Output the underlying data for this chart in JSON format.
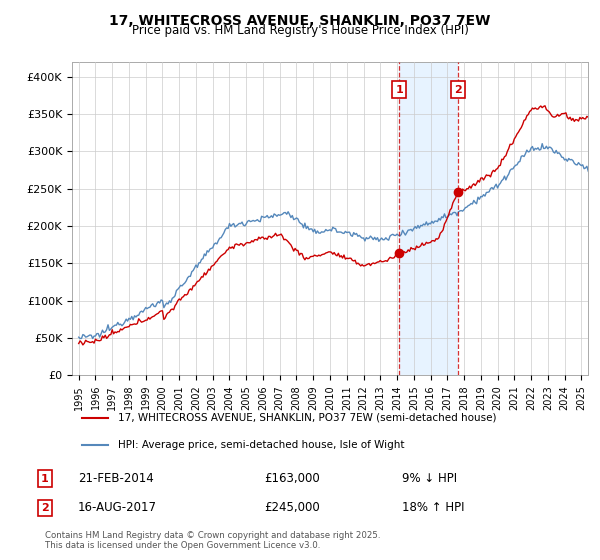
{
  "title": "17, WHITECROSS AVENUE, SHANKLIN, PO37 7EW",
  "subtitle": "Price paid vs. HM Land Registry's House Price Index (HPI)",
  "legend_label_red": "17, WHITECROSS AVENUE, SHANKLIN, PO37 7EW (semi-detached house)",
  "legend_label_blue": "HPI: Average price, semi-detached house, Isle of Wight",
  "annotation1_label": "1",
  "annotation1_date": "21-FEB-2014",
  "annotation1_price": "£163,000",
  "annotation1_pct": "9% ↓ HPI",
  "annotation2_label": "2",
  "annotation2_date": "16-AUG-2017",
  "annotation2_price": "£245,000",
  "annotation2_pct": "18% ↑ HPI",
  "footer": "Contains HM Land Registry data © Crown copyright and database right 2025.\nThis data is licensed under the Open Government Licence v3.0.",
  "red_color": "#cc0000",
  "blue_color": "#5588bb",
  "shade_color": "#ddeeff",
  "background_color": "#ffffff",
  "grid_color": "#cccccc",
  "ylim": [
    0,
    420000
  ],
  "yticks": [
    0,
    50000,
    100000,
    150000,
    200000,
    250000,
    300000,
    350000,
    400000
  ],
  "ytick_labels": [
    "£0",
    "£50K",
    "£100K",
    "£150K",
    "£200K",
    "£250K",
    "£300K",
    "£350K",
    "£400K"
  ],
  "ann1_x_year": 2014.13,
  "ann1_y": 163000,
  "ann2_x_year": 2017.63,
  "ann2_y": 245000,
  "xlim_left": 1994.6,
  "xlim_right": 2025.4
}
